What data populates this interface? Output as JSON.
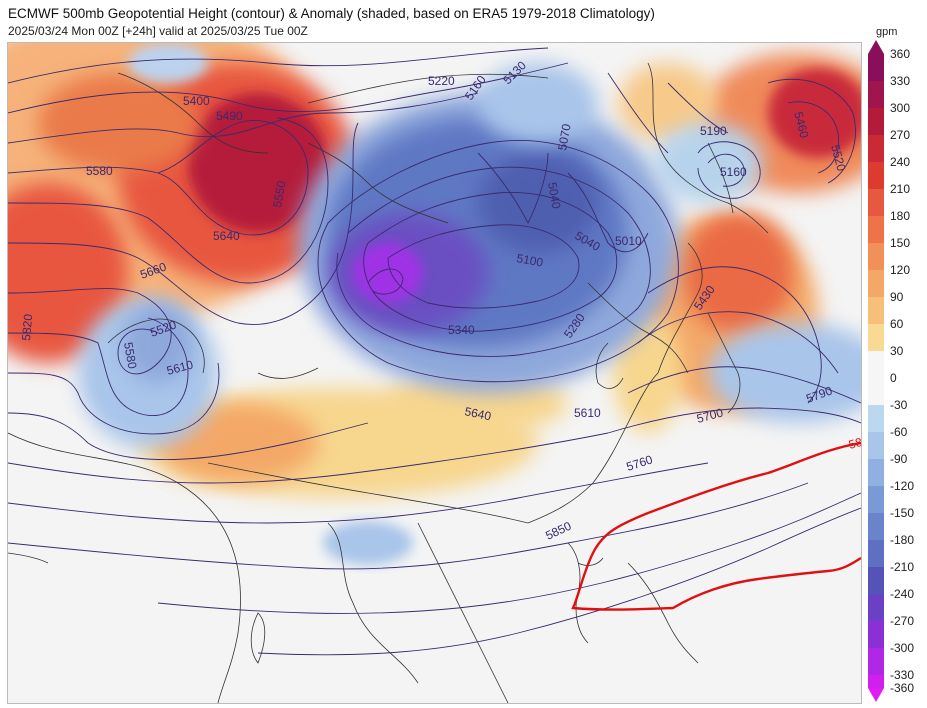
{
  "title": "ECMWF 500mb Geopotential Height (contour) & Anomaly (shaded, based on ERA5 1979-2018 Climatology)",
  "subtitle": "2025/03/24 Mon 00Z [+24h] valid at 2025/03/25 Tue 00Z",
  "colorbar": {
    "unit": "gpm",
    "ticks": [
      "360",
      "330",
      "300",
      "270",
      "240",
      "210",
      "180",
      "150",
      "120",
      "90",
      "60",
      "30",
      "0",
      "-30",
      "-60",
      "-90",
      "-120",
      "-150",
      "-180",
      "-210",
      "-240",
      "-270",
      "-300",
      "-330",
      "-360"
    ]
  },
  "contour_labels": [
    {
      "id": "l5400",
      "text": "5400"
    },
    {
      "id": "l5490",
      "text": "5490"
    },
    {
      "id": "l5220",
      "text": "5220"
    },
    {
      "id": "l5160",
      "text": "5160"
    },
    {
      "id": "l5130",
      "text": "5130"
    },
    {
      "id": "l5580",
      "text": "5580"
    },
    {
      "id": "l5550",
      "text": "5550"
    },
    {
      "id": "l5640a",
      "text": "5640"
    },
    {
      "id": "l5070",
      "text": "5070"
    },
    {
      "id": "l5040a",
      "text": "5040"
    },
    {
      "id": "l5190",
      "text": "5190"
    },
    {
      "id": "l5160b",
      "text": "5160"
    },
    {
      "id": "l5460",
      "text": "5460"
    },
    {
      "id": "l5520a",
      "text": "5520"
    },
    {
      "id": "l5040b",
      "text": "5040"
    },
    {
      "id": "l5010",
      "text": "5010"
    },
    {
      "id": "l5100",
      "text": "5100"
    },
    {
      "id": "l5430",
      "text": "5430"
    },
    {
      "id": "l5660",
      "text": "5660"
    },
    {
      "id": "l5520b",
      "text": "5520"
    },
    {
      "id": "l5580b",
      "text": "5580"
    },
    {
      "id": "l5820",
      "text": "5820"
    },
    {
      "id": "l5610a",
      "text": "5610"
    },
    {
      "id": "l5340",
      "text": "5340"
    },
    {
      "id": "l5280",
      "text": "5280"
    },
    {
      "id": "l5640b",
      "text": "5640"
    },
    {
      "id": "l5610b",
      "text": "5610"
    },
    {
      "id": "l5700",
      "text": "5700"
    },
    {
      "id": "l5790",
      "text": "5790"
    },
    {
      "id": "l5760",
      "text": "5760"
    },
    {
      "id": "l5850",
      "text": "5850"
    },
    {
      "id": "l58x",
      "text": "58"
    }
  ],
  "colors": {
    "contour": "#3a2a6e",
    "highlight_contour": "#e01010",
    "coastline": "#333333"
  }
}
